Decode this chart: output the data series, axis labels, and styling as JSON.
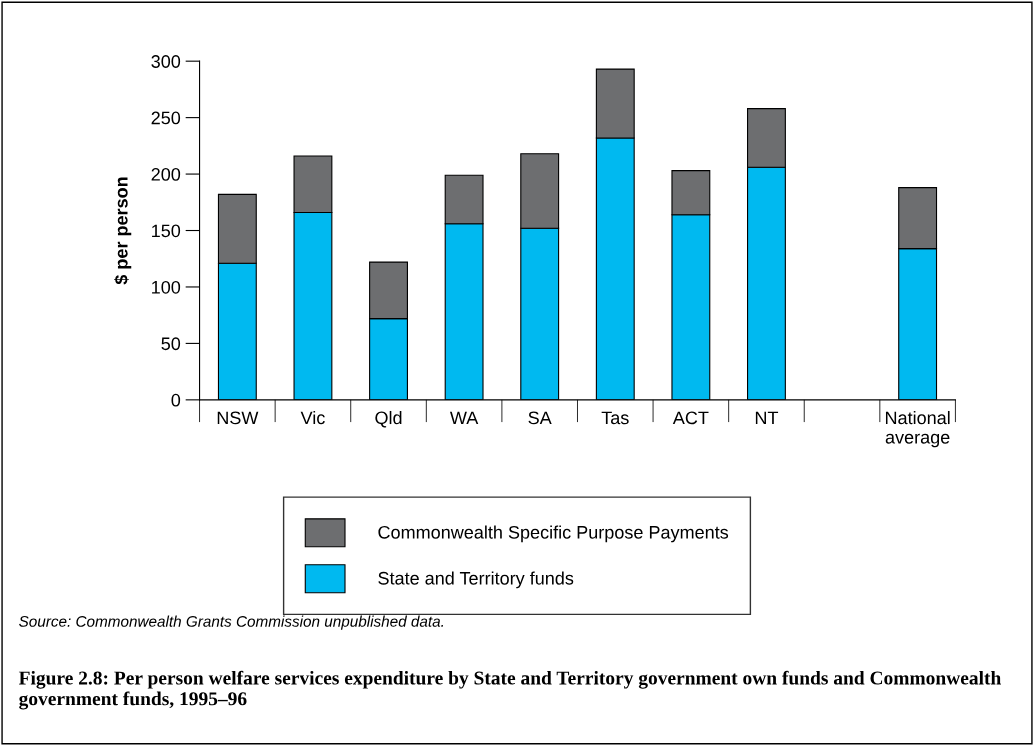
{
  "chart_data": {
    "type": "bar",
    "stacked": true,
    "title": "Figure 2.8: Per person welfare services expenditure by State and Territory government own funds and Commonwealth government funds, 1995–96",
    "ylabel": "$ per person",
    "categories": [
      "NSW",
      "Vic",
      "Qld",
      "WA",
      "SA",
      "Tas",
      "ACT",
      "NT",
      null,
      "National\naverage"
    ],
    "series": [
      {
        "name": "State and Territory funds",
        "color": "#00b9f0",
        "values": [
          121,
          166,
          72,
          156,
          152,
          232,
          164,
          206,
          null,
          134
        ]
      },
      {
        "name": "Commonwealth Specific Purpose Payments",
        "color": "#6d6e70",
        "values": [
          61,
          50,
          50,
          43,
          66,
          61,
          39,
          52,
          null,
          54
        ]
      }
    ],
    "ylim": [
      0,
      300
    ],
    "yticks": [
      0,
      50,
      100,
      150,
      200,
      250,
      300
    ],
    "grid": false,
    "legend": "bottom",
    "annotations": [
      "Source: Commonwealth Grants Commission unpublished data."
    ]
  }
}
